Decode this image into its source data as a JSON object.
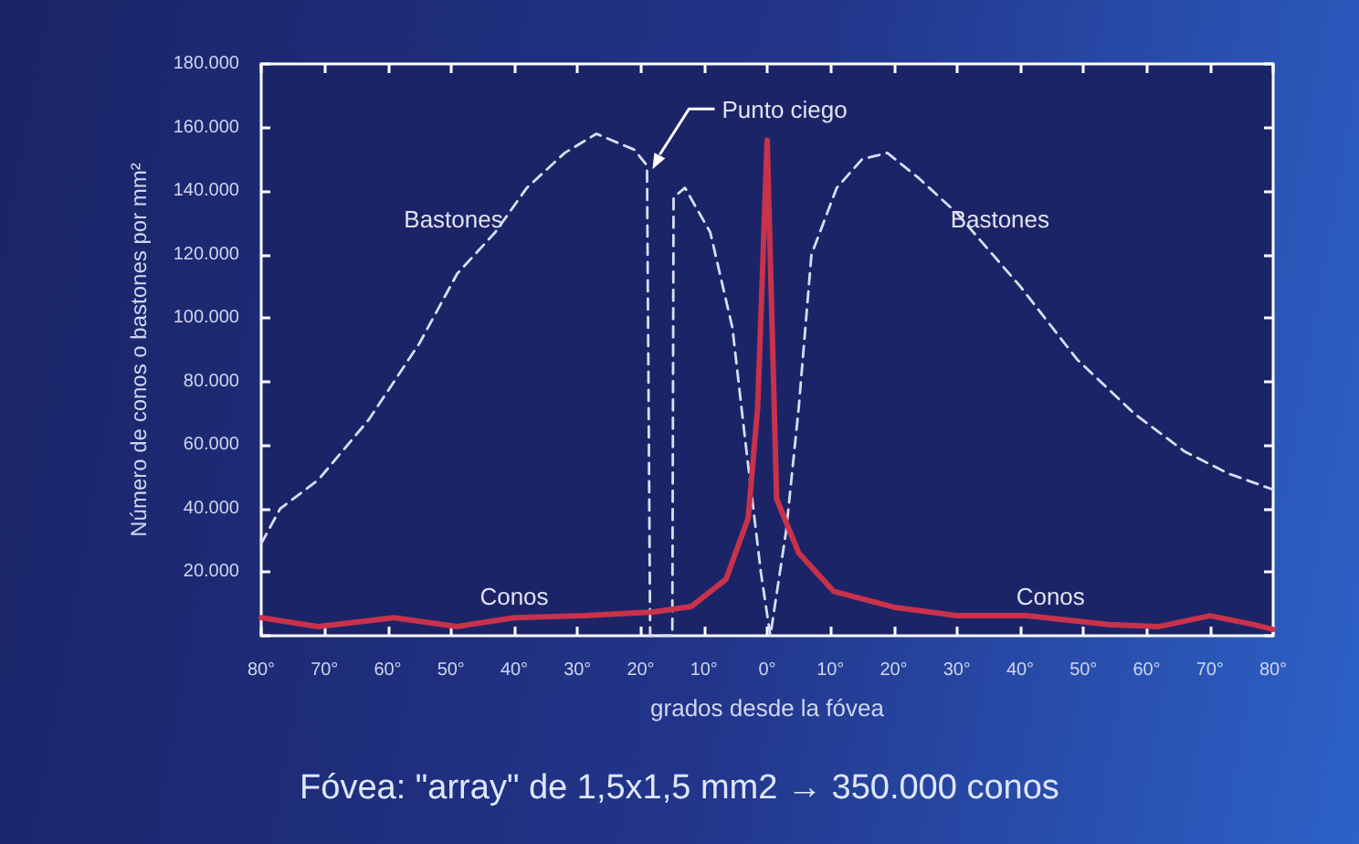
{
  "chart_data": {
    "type": "line",
    "xlabel": "grados desde la fóvea",
    "ylabel": "Número de conos o bastones por mm²",
    "xlim": [
      -80,
      80
    ],
    "xticks": [
      {
        "value": -80,
        "label": "80°"
      },
      {
        "value": -70,
        "label": "70°"
      },
      {
        "value": -60,
        "label": "60°"
      },
      {
        "value": -50,
        "label": "50°"
      },
      {
        "value": -40,
        "label": "40°"
      },
      {
        "value": -30,
        "label": "30°"
      },
      {
        "value": -20,
        "label": "20°"
      },
      {
        "value": -10,
        "label": "10°"
      },
      {
        "value": 0,
        "label": "0°"
      },
      {
        "value": 10,
        "label": "10°"
      },
      {
        "value": 20,
        "label": "20°"
      },
      {
        "value": 30,
        "label": "30°"
      },
      {
        "value": 40,
        "label": "40°"
      },
      {
        "value": 50,
        "label": "50°"
      },
      {
        "value": 60,
        "label": "60°"
      },
      {
        "value": 70,
        "label": "70°"
      },
      {
        "value": 80,
        "label": "80°"
      }
    ],
    "ylim": [
      0,
      180000
    ],
    "yticks": [
      {
        "value": 0,
        "label": null
      },
      {
        "value": 20000,
        "label": "20.000"
      },
      {
        "value": 40000,
        "label": "40.000"
      },
      {
        "value": 60000,
        "label": "60.000"
      },
      {
        "value": 80000,
        "label": "80.000"
      },
      {
        "value": 100000,
        "label": "100.000"
      },
      {
        "value": 120000,
        "label": "120.000"
      },
      {
        "value": 140000,
        "label": "140.000"
      },
      {
        "value": 160000,
        "label": "160.000"
      },
      {
        "value": 180000,
        "label": "180.000"
      }
    ],
    "grid": false,
    "legend": false,
    "marker": "none",
    "series": [
      {
        "name": "Bastones",
        "color": "#d8def2",
        "line_style": "dashed",
        "x": [
          -80,
          -77,
          -71,
          -63,
          -55,
          -49,
          -43,
          -38,
          -32,
          -27,
          -21,
          -19,
          -18.5,
          -15,
          -14.8,
          -13,
          -9,
          -5.5,
          -3.5,
          -1,
          0.5,
          3,
          5,
          7,
          11,
          15,
          19,
          24,
          30,
          40,
          49,
          58,
          66,
          73,
          80
        ],
        "values": [
          29000,
          40000,
          49000,
          68000,
          92000,
          114000,
          127000,
          141000,
          152000,
          158000,
          153000,
          148000,
          0,
          0,
          138000,
          141000,
          127000,
          97000,
          62000,
          20000,
          0,
          33000,
          72000,
          120000,
          141000,
          150000,
          152000,
          144000,
          133000,
          110000,
          87000,
          70000,
          58000,
          51000,
          46000
        ]
      },
      {
        "name": "Conos",
        "color": "#c8324a",
        "line_style": "solid",
        "x": [
          -80,
          -71,
          -59,
          -49,
          -40,
          -29,
          -18,
          -12,
          -6.5,
          -3,
          -1.5,
          0,
          1.5,
          5,
          10.5,
          20,
          30,
          41,
          54,
          62,
          70,
          77,
          80
        ],
        "values": [
          5700,
          2900,
          5700,
          2900,
          5700,
          6300,
          7500,
          9200,
          17800,
          37000,
          72000,
          156000,
          43000,
          26000,
          14000,
          9000,
          6300,
          6300,
          3500,
          2900,
          6300,
          3500,
          2000
        ]
      }
    ],
    "annotations": [
      "Punto ciego",
      "Fóvea: \"array\" de 1,5x1,5 mm2 → 350.000 conos"
    ]
  }
}
